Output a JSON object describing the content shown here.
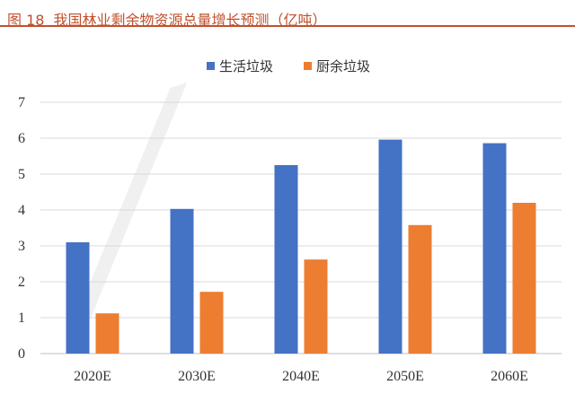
{
  "figure": {
    "number": "图 18",
    "title": "我国林业剩余物资源总量增长预测（亿吨）"
  },
  "colors": {
    "title": "#c1502d",
    "series_1": "#4472c4",
    "series_2": "#ed7d31",
    "grid": "#d9d9d9"
  },
  "chart_data": {
    "type": "bar",
    "title": "",
    "xlabel": "",
    "ylabel": "",
    "categories": [
      "2020E",
      "2030E",
      "2040E",
      "2050E",
      "2060E"
    ],
    "series": [
      {
        "name": "生活垃圾",
        "values": [
          3.1,
          4.03,
          5.25,
          5.96,
          5.86
        ]
      },
      {
        "name": "厨余垃圾",
        "values": [
          1.12,
          1.72,
          2.62,
          3.58,
          4.2
        ]
      }
    ],
    "ylim": [
      0,
      7
    ],
    "yticks": [
      "0",
      "1",
      "2",
      "3",
      "4",
      "5",
      "6",
      "7"
    ],
    "grid": true,
    "legend_position": "top-center"
  }
}
